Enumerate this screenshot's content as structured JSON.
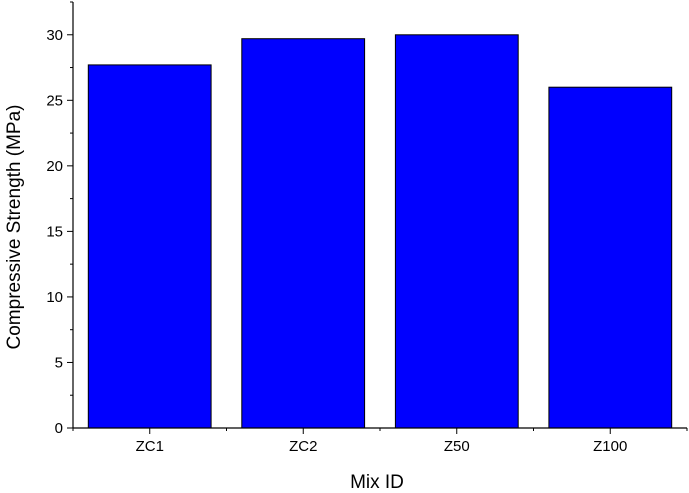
{
  "chart_data": {
    "type": "bar",
    "categories": [
      "ZC1",
      "ZC2",
      "Z50",
      "Z100"
    ],
    "values": [
      27.7,
      29.7,
      30.0,
      26.0
    ],
    "title": "",
    "xlabel": "Mix ID",
    "ylabel": "Compressive Strength (MPa)",
    "ylim": [
      0,
      32.5
    ],
    "yticks": [
      0,
      5,
      10,
      15,
      20,
      25,
      30
    ],
    "yticks_minor": [
      2.5,
      7.5,
      12.5,
      17.5,
      22.5,
      27.5,
      32.5
    ],
    "grid": false,
    "legend": "none",
    "bar_color": "#0000ff",
    "bar_edge_color": "#000000",
    "axis_color": "#000000"
  }
}
